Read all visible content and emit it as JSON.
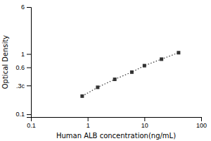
{
  "chart_data": {
    "type": "line",
    "xlabel": "Human ALB concentration(ng/mL)",
    "ylabel": "Optical Density",
    "x": [
      0.8,
      1.5,
      3.0,
      6.0,
      10.0,
      20.0,
      40.0
    ],
    "values": [
      0.2,
      0.28,
      0.38,
      0.5,
      0.64,
      0.82,
      1.05
    ],
    "xlim": [
      0.1,
      100
    ],
    "ylim": [
      0.09,
      6.0
    ],
    "xticks": [
      0.1,
      1,
      10,
      100
    ],
    "yticks": [
      0.1,
      {
        "value": 0.3,
        "label": ".3c"
      },
      0.6,
      1,
      6
    ],
    "log": true,
    "color": "#333333",
    "marker": "square",
    "line_style": "dotted"
  }
}
